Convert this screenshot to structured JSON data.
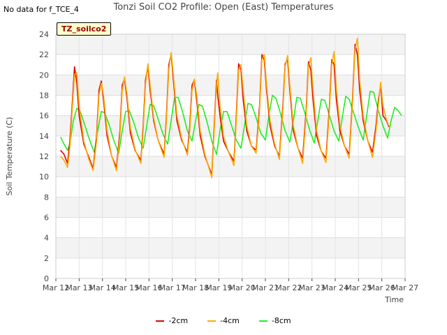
{
  "note": "No data for f_TCE_4",
  "badge": "TZ_soilco2",
  "chart_data": {
    "type": "line",
    "title": "Tonzi Soil CO2 Profile: Open (East) Temperatures",
    "xlabel": "Time",
    "ylabel": "Soil Temperature (C)",
    "ylim": [
      0,
      24
    ],
    "yticks": [
      0,
      2,
      4,
      6,
      8,
      10,
      12,
      14,
      16,
      18,
      20,
      22,
      24
    ],
    "xlim": [
      12,
      27
    ],
    "xticks": [
      {
        "x": 12,
        "label": "Mar 12"
      },
      {
        "x": 13,
        "label": "Mar 13"
      },
      {
        "x": 14,
        "label": "Mar 14"
      },
      {
        "x": 15,
        "label": "Mar 15"
      },
      {
        "x": 16,
        "label": "Mar 16"
      },
      {
        "x": 17,
        "label": "Mar 17"
      },
      {
        "x": 18,
        "label": "Mar 18"
      },
      {
        "x": 19,
        "label": "Mar 19"
      },
      {
        "x": 20,
        "label": "Mar 20"
      },
      {
        "x": 21,
        "label": "Mar 21"
      },
      {
        "x": 22,
        "label": "Mar 22"
      },
      {
        "x": 23,
        "label": "Mar 23"
      },
      {
        "x": 24,
        "label": "Mar 24"
      },
      {
        "x": 25,
        "label": "Mar 25"
      },
      {
        "x": 26,
        "label": "Mar 26"
      },
      {
        "x": 27,
        "label": "Mar 27"
      }
    ],
    "grid": true,
    "legend_position": "bottom",
    "series": [
      {
        "name": "-2cm",
        "color": "#dd0000",
        "points": [
          [
            12.2,
            12.6
          ],
          [
            12.35,
            12.2
          ],
          [
            12.5,
            11.3
          ],
          [
            12.6,
            13.5
          ],
          [
            12.7,
            17.0
          ],
          [
            12.8,
            20.8
          ],
          [
            12.9,
            19.2
          ],
          [
            13.0,
            16.0
          ],
          [
            13.2,
            13.2
          ],
          [
            13.4,
            12.0
          ],
          [
            13.6,
            10.8
          ],
          [
            13.75,
            14.0
          ],
          [
            13.85,
            18.5
          ],
          [
            13.95,
            19.4
          ],
          [
            14.05,
            17.5
          ],
          [
            14.2,
            14.0
          ],
          [
            14.4,
            12.0
          ],
          [
            14.6,
            10.9
          ],
          [
            14.75,
            14.5
          ],
          [
            14.85,
            19.0
          ],
          [
            14.95,
            19.6
          ],
          [
            15.05,
            17.8
          ],
          [
            15.2,
            14.3
          ],
          [
            15.4,
            12.6
          ],
          [
            15.65,
            11.6
          ],
          [
            15.75,
            15.0
          ],
          [
            15.85,
            19.5
          ],
          [
            15.95,
            20.8
          ],
          [
            16.05,
            18.5
          ],
          [
            16.2,
            15.5
          ],
          [
            16.4,
            13.5
          ],
          [
            16.65,
            12.2
          ],
          [
            16.75,
            16.0
          ],
          [
            16.85,
            21.0
          ],
          [
            16.95,
            22.0
          ],
          [
            17.05,
            19.5
          ],
          [
            17.2,
            15.5
          ],
          [
            17.4,
            13.6
          ],
          [
            17.65,
            12.4
          ],
          [
            17.75,
            15.0
          ],
          [
            17.85,
            19.0
          ],
          [
            17.95,
            19.5
          ],
          [
            18.05,
            17.5
          ],
          [
            18.2,
            14.0
          ],
          [
            18.4,
            12.0
          ],
          [
            18.7,
            10.2
          ],
          [
            18.8,
            15.0
          ],
          [
            18.9,
            19.5
          ],
          [
            18.95,
            18.0
          ],
          [
            19.05,
            16.0
          ],
          [
            19.2,
            13.5
          ],
          [
            19.4,
            12.5
          ],
          [
            19.65,
            11.5
          ],
          [
            19.75,
            16.0
          ],
          [
            19.85,
            21.1
          ],
          [
            19.95,
            20.5
          ],
          [
            20.05,
            17.5
          ],
          [
            20.2,
            14.5
          ],
          [
            20.4,
            13.0
          ],
          [
            20.6,
            12.6
          ],
          [
            20.75,
            17.0
          ],
          [
            20.85,
            22.0
          ],
          [
            20.95,
            21.5
          ],
          [
            21.05,
            18.5
          ],
          [
            21.2,
            15.0
          ],
          [
            21.4,
            13.0
          ],
          [
            21.6,
            12.0
          ],
          [
            21.75,
            17.0
          ],
          [
            21.85,
            21.1
          ],
          [
            21.95,
            21.5
          ],
          [
            22.05,
            18.5
          ],
          [
            22.2,
            14.5
          ],
          [
            22.4,
            12.8
          ],
          [
            22.6,
            11.8
          ],
          [
            22.75,
            16.5
          ],
          [
            22.85,
            21.3
          ],
          [
            22.95,
            20.5
          ],
          [
            23.05,
            17.5
          ],
          [
            23.2,
            14.0
          ],
          [
            23.4,
            12.5
          ],
          [
            23.6,
            11.8
          ],
          [
            23.75,
            17.0
          ],
          [
            23.85,
            21.5
          ],
          [
            23.95,
            21.0
          ],
          [
            24.05,
            17.5
          ],
          [
            24.2,
            14.5
          ],
          [
            24.4,
            13.0
          ],
          [
            24.6,
            12.2
          ],
          [
            24.75,
            18.0
          ],
          [
            24.85,
            23.0
          ],
          [
            24.95,
            22.0
          ],
          [
            25.05,
            18.5
          ],
          [
            25.2,
            15.5
          ],
          [
            25.4,
            13.5
          ],
          [
            25.6,
            12.4
          ],
          [
            25.75,
            15.0
          ],
          [
            25.85,
            17.5
          ],
          [
            25.95,
            19.0
          ],
          [
            26.05,
            16.0
          ],
          [
            26.2,
            15.5
          ],
          [
            26.3,
            14.9
          ]
        ]
      },
      {
        "name": "-4cm",
        "color": "#ffaa00",
        "points": [
          [
            12.2,
            12.0
          ],
          [
            12.35,
            11.6
          ],
          [
            12.5,
            10.9
          ],
          [
            12.6,
            12.8
          ],
          [
            12.7,
            16.5
          ],
          [
            12.8,
            20.0
          ],
          [
            12.9,
            20.2
          ],
          [
            13.0,
            17.0
          ],
          [
            13.2,
            13.5
          ],
          [
            13.4,
            11.8
          ],
          [
            13.6,
            10.6
          ],
          [
            13.75,
            13.5
          ],
          [
            13.85,
            18.0
          ],
          [
            13.95,
            19.2
          ],
          [
            14.05,
            18.0
          ],
          [
            14.2,
            14.5
          ],
          [
            14.4,
            12.0
          ],
          [
            14.6,
            10.6
          ],
          [
            14.75,
            14.0
          ],
          [
            14.85,
            18.5
          ],
          [
            14.95,
            19.8
          ],
          [
            15.05,
            18.2
          ],
          [
            15.2,
            14.8
          ],
          [
            15.4,
            12.7
          ],
          [
            15.65,
            11.3
          ],
          [
            15.75,
            14.5
          ],
          [
            15.85,
            19.0
          ],
          [
            15.95,
            21.1
          ],
          [
            16.05,
            19.0
          ],
          [
            16.2,
            15.8
          ],
          [
            16.4,
            13.5
          ],
          [
            16.65,
            11.9
          ],
          [
            16.75,
            15.5
          ],
          [
            16.85,
            20.5
          ],
          [
            16.95,
            22.2
          ],
          [
            17.05,
            20.0
          ],
          [
            17.2,
            16.0
          ],
          [
            17.4,
            13.8
          ],
          [
            17.65,
            12.1
          ],
          [
            17.75,
            14.5
          ],
          [
            17.85,
            18.5
          ],
          [
            17.95,
            19.6
          ],
          [
            18.05,
            18.0
          ],
          [
            18.2,
            14.5
          ],
          [
            18.4,
            12.2
          ],
          [
            18.7,
            9.9
          ],
          [
            18.8,
            14.5
          ],
          [
            18.9,
            19.0
          ],
          [
            18.95,
            20.2
          ],
          [
            19.05,
            17.0
          ],
          [
            19.2,
            14.0
          ],
          [
            19.4,
            12.5
          ],
          [
            19.65,
            11.1
          ],
          [
            19.75,
            15.5
          ],
          [
            19.85,
            20.5
          ],
          [
            19.95,
            21.0
          ],
          [
            20.05,
            18.5
          ],
          [
            20.2,
            15.0
          ],
          [
            20.4,
            13.0
          ],
          [
            20.6,
            12.3
          ],
          [
            20.75,
            16.5
          ],
          [
            20.85,
            21.5
          ],
          [
            20.95,
            22.0
          ],
          [
            21.05,
            19.0
          ],
          [
            21.2,
            15.5
          ],
          [
            21.4,
            13.2
          ],
          [
            21.6,
            11.7
          ],
          [
            21.75,
            16.5
          ],
          [
            21.85,
            20.8
          ],
          [
            21.95,
            21.9
          ],
          [
            22.05,
            19.0
          ],
          [
            22.2,
            15.0
          ],
          [
            22.4,
            12.8
          ],
          [
            22.6,
            11.3
          ],
          [
            22.75,
            16.0
          ],
          [
            22.85,
            20.8
          ],
          [
            22.95,
            21.7
          ],
          [
            23.05,
            18.5
          ],
          [
            23.2,
            14.5
          ],
          [
            23.4,
            12.5
          ],
          [
            23.6,
            11.4
          ],
          [
            23.75,
            16.5
          ],
          [
            23.85,
            21.0
          ],
          [
            23.95,
            22.3
          ],
          [
            24.05,
            18.5
          ],
          [
            24.2,
            15.0
          ],
          [
            24.4,
            13.0
          ],
          [
            24.6,
            11.8
          ],
          [
            24.75,
            17.5
          ],
          [
            24.85,
            22.5
          ],
          [
            24.95,
            23.6
          ],
          [
            25.05,
            19.5
          ],
          [
            25.2,
            16.0
          ],
          [
            25.4,
            13.5
          ],
          [
            25.6,
            11.9
          ],
          [
            25.75,
            14.5
          ],
          [
            25.85,
            17.0
          ],
          [
            25.95,
            19.3
          ],
          [
            26.05,
            17.0
          ],
          [
            26.2,
            15.6
          ],
          [
            26.3,
            15.0
          ]
        ]
      },
      {
        "name": "-8cm",
        "color": "#22ee22",
        "points": [
          [
            12.2,
            13.9
          ],
          [
            12.35,
            13.2
          ],
          [
            12.5,
            12.6
          ],
          [
            12.6,
            13.2
          ],
          [
            12.75,
            15.5
          ],
          [
            12.9,
            16.7
          ],
          [
            13.05,
            16.4
          ],
          [
            13.25,
            15.0
          ],
          [
            13.45,
            13.6
          ],
          [
            13.65,
            12.4
          ],
          [
            13.8,
            14.5
          ],
          [
            13.95,
            16.4
          ],
          [
            14.1,
            16.3
          ],
          [
            14.3,
            15.0
          ],
          [
            14.5,
            13.5
          ],
          [
            14.7,
            12.3
          ],
          [
            14.85,
            14.5
          ],
          [
            15.0,
            16.4
          ],
          [
            15.15,
            16.5
          ],
          [
            15.35,
            15.3
          ],
          [
            15.55,
            13.8
          ],
          [
            15.75,
            12.8
          ],
          [
            15.9,
            15.0
          ],
          [
            16.05,
            17.1
          ],
          [
            16.2,
            17.0
          ],
          [
            16.4,
            15.6
          ],
          [
            16.6,
            14.2
          ],
          [
            16.8,
            13.2
          ],
          [
            16.95,
            15.5
          ],
          [
            17.1,
            17.8
          ],
          [
            17.25,
            17.8
          ],
          [
            17.45,
            16.3
          ],
          [
            17.65,
            14.5
          ],
          [
            17.85,
            13.5
          ],
          [
            18.0,
            15.5
          ],
          [
            18.15,
            17.1
          ],
          [
            18.3,
            16.9
          ],
          [
            18.5,
            15.3
          ],
          [
            18.7,
            13.5
          ],
          [
            18.9,
            12.2
          ],
          [
            19.05,
            14.5
          ],
          [
            19.2,
            16.4
          ],
          [
            19.35,
            16.4
          ],
          [
            19.55,
            15.0
          ],
          [
            19.75,
            13.6
          ],
          [
            19.95,
            12.8
          ],
          [
            20.1,
            15.0
          ],
          [
            20.25,
            17.2
          ],
          [
            20.4,
            17.1
          ],
          [
            20.6,
            15.8
          ],
          [
            20.8,
            14.3
          ],
          [
            21.0,
            13.6
          ],
          [
            21.15,
            16.0
          ],
          [
            21.3,
            18.0
          ],
          [
            21.45,
            17.7
          ],
          [
            21.65,
            16.2
          ],
          [
            21.85,
            14.5
          ],
          [
            22.05,
            13.4
          ],
          [
            22.2,
            15.5
          ],
          [
            22.35,
            17.8
          ],
          [
            22.5,
            17.7
          ],
          [
            22.7,
            16.2
          ],
          [
            22.9,
            14.6
          ],
          [
            23.1,
            13.3
          ],
          [
            23.25,
            15.5
          ],
          [
            23.4,
            17.6
          ],
          [
            23.55,
            17.5
          ],
          [
            23.75,
            16.0
          ],
          [
            23.95,
            14.5
          ],
          [
            24.15,
            13.5
          ],
          [
            24.3,
            15.8
          ],
          [
            24.45,
            17.9
          ],
          [
            24.6,
            17.6
          ],
          [
            24.8,
            16.2
          ],
          [
            25.0,
            14.8
          ],
          [
            25.2,
            13.6
          ],
          [
            25.35,
            16.0
          ],
          [
            25.5,
            18.4
          ],
          [
            25.65,
            18.3
          ],
          [
            25.85,
            16.5
          ],
          [
            26.05,
            15.0
          ],
          [
            26.25,
            13.8
          ],
          [
            26.4,
            15.5
          ],
          [
            26.55,
            16.8
          ],
          [
            26.7,
            16.5
          ],
          [
            26.85,
            16.0
          ]
        ]
      }
    ]
  }
}
